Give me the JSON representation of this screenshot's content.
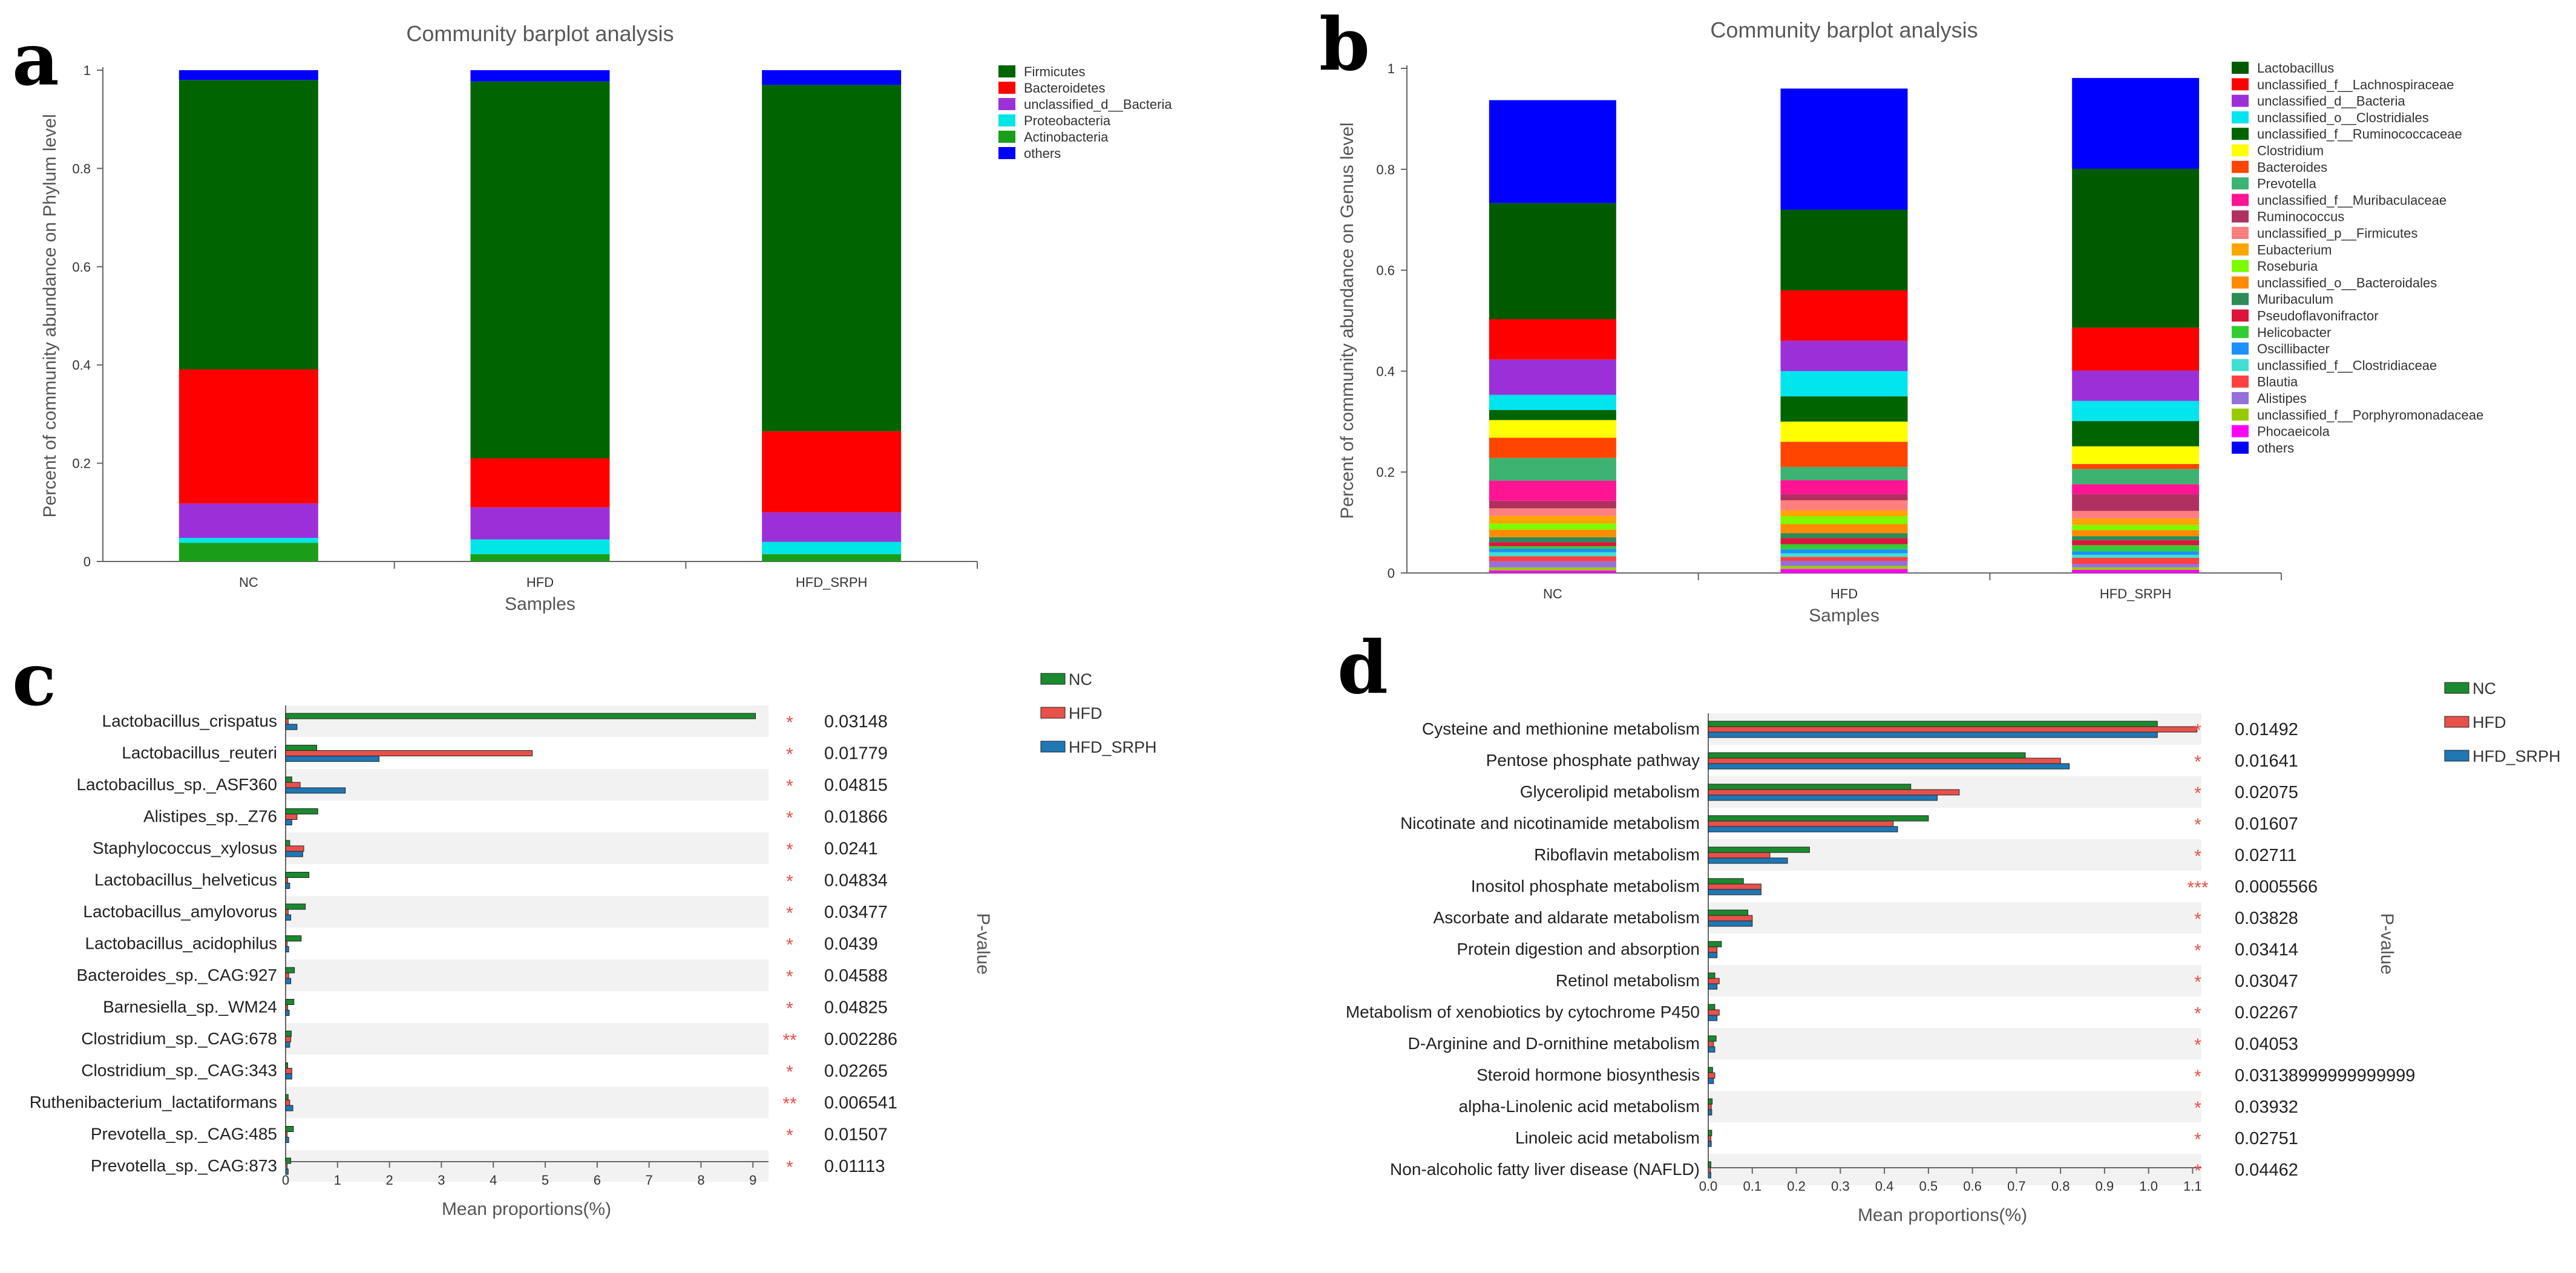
{
  "figure": {
    "panels": [
      "a",
      "b",
      "c",
      "d"
    ]
  },
  "chart_data": [
    {
      "panel": "a",
      "type": "bar",
      "stacked": true,
      "title": "Community barplot analysis",
      "xlabel": "Samples",
      "ylabel": "Percent of community abundance on Phylum level",
      "ylim": [
        0,
        1
      ],
      "yticks": [
        "0",
        "0.2",
        "0.4",
        "0.6",
        "0.8",
        "1"
      ],
      "categories": [
        "NC",
        "HFD",
        "HFD_SRPH"
      ],
      "series": [
        {
          "name": "Actinobacteria",
          "color": "#1a9e1a",
          "values": [
            0.038,
            0.015,
            0.015
          ]
        },
        {
          "name": "Proteobacteria",
          "color": "#00e5e5",
          "values": [
            0.01,
            0.03,
            0.025
          ]
        },
        {
          "name": "unclassified_d__Bacteria",
          "color": "#9b30d9",
          "values": [
            0.07,
            0.065,
            0.06
          ]
        },
        {
          "name": "Bacteroidetes",
          "color": "#ff0000",
          "values": [
            0.273,
            0.1,
            0.165
          ]
        },
        {
          "name": "Firmicutes",
          "color": "#006400",
          "values": [
            0.589,
            0.767,
            0.705
          ]
        },
        {
          "name": "others",
          "color": "#0000ff",
          "values": [
            0.02,
            0.023,
            0.03
          ]
        }
      ],
      "legend_order": [
        "Firmicutes",
        "Bacteroidetes",
        "unclassified_d__Bacteria",
        "Proteobacteria",
        "Actinobacteria",
        "others"
      ],
      "legend_position": "right"
    },
    {
      "panel": "b",
      "type": "bar",
      "stacked": true,
      "title": "Community barplot analysis",
      "xlabel": "Samples",
      "ylabel": "Percent of community abundance on Genus level",
      "ylim": [
        0,
        1
      ],
      "yticks": [
        "0",
        "0.2",
        "0.4",
        "0.6",
        "0.8",
        "1"
      ],
      "categories": [
        "NC",
        "HFD",
        "HFD_SRPH"
      ],
      "series": [
        {
          "name": "Phocaeicola",
          "color": "#ff00ff",
          "values": [
            0.005,
            0.008,
            0.006
          ]
        },
        {
          "name": "unclassified_f__Porphyromonadaceae",
          "color": "#99cc00",
          "values": [
            0.006,
            0.006,
            0.005
          ]
        },
        {
          "name": "Alistipes",
          "color": "#9370db",
          "values": [
            0.012,
            0.01,
            0.007
          ]
        },
        {
          "name": "Blautia",
          "color": "#ff4040",
          "values": [
            0.01,
            0.008,
            0.012
          ]
        },
        {
          "name": "unclassified_f__Clostridiaceae",
          "color": "#40e0d0",
          "values": [
            0.008,
            0.007,
            0.006
          ]
        },
        {
          "name": "Oscillibacter",
          "color": "#1e90ff",
          "values": [
            0.007,
            0.008,
            0.007
          ]
        },
        {
          "name": "Helicobacter",
          "color": "#32cd32",
          "values": [
            0.005,
            0.01,
            0.012
          ]
        },
        {
          "name": "Pseudoflavonifractor",
          "color": "#dc143c",
          "values": [
            0.008,
            0.012,
            0.01
          ]
        },
        {
          "name": "Muribaculum",
          "color": "#2e8b57",
          "values": [
            0.01,
            0.01,
            0.008
          ]
        },
        {
          "name": "unclassified_o__Bacteroidales",
          "color": "#ff8c00",
          "values": [
            0.015,
            0.018,
            0.012
          ]
        },
        {
          "name": "Roseburia",
          "color": "#7cfc00",
          "values": [
            0.012,
            0.015,
            0.01
          ]
        },
        {
          "name": "Eubacterium",
          "color": "#ffa500",
          "values": [
            0.015,
            0.012,
            0.013
          ]
        },
        {
          "name": "unclassified_p__Firmicutes",
          "color": "#ff7f7f",
          "values": [
            0.015,
            0.02,
            0.015
          ]
        },
        {
          "name": "Ruminococcus",
          "color": "#b03060",
          "values": [
            0.015,
            0.012,
            0.033
          ]
        },
        {
          "name": "unclassified_f__Muribaculaceae",
          "color": "#ff1493",
          "values": [
            0.04,
            0.028,
            0.02
          ]
        },
        {
          "name": "Prevotella",
          "color": "#3cb371",
          "values": [
            0.045,
            0.026,
            0.03
          ]
        },
        {
          "name": "Bacteroides",
          "color": "#ff4500",
          "values": [
            0.04,
            0.05,
            0.01
          ]
        },
        {
          "name": "Clostridium",
          "color": "#ffff00",
          "values": [
            0.035,
            0.04,
            0.035
          ]
        },
        {
          "name": "unclassified_f__Ruminococcaceae",
          "color": "#006400",
          "values": [
            0.02,
            0.05,
            0.05
          ]
        },
        {
          "name": "unclassified_o__Clostridiales",
          "color": "#00e5ee",
          "values": [
            0.03,
            0.05,
            0.04
          ]
        },
        {
          "name": "unclassified_d__Bacteria",
          "color": "#9b30d9",
          "values": [
            0.07,
            0.06,
            0.06
          ]
        },
        {
          "name": "unclassified_f__Lachnospiraceae",
          "color": "#ff0000",
          "values": [
            0.08,
            0.1,
            0.085
          ]
        },
        {
          "name": "Lactobacillus",
          "color": "#005a00",
          "values": [
            0.23,
            0.16,
            0.315
          ]
        },
        {
          "name": "others",
          "color": "#0000ff",
          "values": [
            0.204,
            0.24,
            0.18
          ]
        }
      ],
      "legend_order": [
        "Lactobacillus",
        "unclassified_f__Lachnospiraceae",
        "unclassified_d__Bacteria",
        "unclassified_o__Clostridiales",
        "unclassified_f__Ruminococcaceae",
        "Clostridium",
        "Bacteroides",
        "Prevotella",
        "unclassified_f__Muribaculaceae",
        "Ruminococcus",
        "unclassified_p__Firmicutes",
        "Eubacterium",
        "Roseburia",
        "unclassified_o__Bacteroidales",
        "Muribaculum",
        "Pseudoflavonifractor",
        "Helicobacter",
        "Oscillibacter",
        "unclassified_f__Clostridiaceae",
        "Blautia",
        "Alistipes",
        "unclassified_f__Porphyromonadaceae",
        "Phocaeicola",
        "others"
      ],
      "legend_position": "right"
    },
    {
      "panel": "c",
      "type": "bar",
      "orientation": "horizontal",
      "xlabel": "Mean proportions(%)",
      "p_label": "P-value",
      "xlim": [
        0,
        9.3
      ],
      "xticks": [
        "0",
        "1",
        "2",
        "3",
        "4",
        "5",
        "6",
        "7",
        "8",
        "9"
      ],
      "group_names": [
        "NC",
        "HFD",
        "HFD_SRPH"
      ],
      "group_colors": [
        "#1a8a2e",
        "#e8504a",
        "#1f77b4"
      ],
      "rows": [
        {
          "label": "Lactobacillus_crispatus",
          "values": [
            9.05,
            0.05,
            0.22
          ],
          "star": "*",
          "p": "0.03148"
        },
        {
          "label": "Lactobacillus_reuteri",
          "values": [
            0.6,
            4.75,
            1.8
          ],
          "star": "*",
          "p": "0.01779"
        },
        {
          "label": "Lactobacillus_sp._ASF360",
          "values": [
            0.12,
            0.28,
            1.15
          ],
          "star": "*",
          "p": "0.04815"
        },
        {
          "label": "Alistipes_sp._Z76",
          "values": [
            0.62,
            0.22,
            0.12
          ],
          "star": "*",
          "p": "0.01866"
        },
        {
          "label": "Staphylococcus_xylosus",
          "values": [
            0.08,
            0.35,
            0.33
          ],
          "star": "*",
          "p": "0.0241"
        },
        {
          "label": "Lactobacillus_helveticus",
          "values": [
            0.45,
            0.04,
            0.08
          ],
          "star": "*",
          "p": "0.04834"
        },
        {
          "label": "Lactobacillus_amylovorus",
          "values": [
            0.38,
            0.05,
            0.1
          ],
          "star": "*",
          "p": "0.03477"
        },
        {
          "label": "Lactobacillus_acidophilus",
          "values": [
            0.3,
            0.03,
            0.06
          ],
          "star": "*",
          "p": "0.0439"
        },
        {
          "label": "Bacteroides_sp._CAG:927",
          "values": [
            0.17,
            0.06,
            0.1
          ],
          "star": "*",
          "p": "0.04588"
        },
        {
          "label": "Barnesiella_sp._WM24",
          "values": [
            0.16,
            0.04,
            0.07
          ],
          "star": "*",
          "p": "0.04825"
        },
        {
          "label": "Clostridium_sp._CAG:678",
          "values": [
            0.11,
            0.1,
            0.08
          ],
          "star": "**",
          "p": "0.002286"
        },
        {
          "label": "Clostridium_sp._CAG:343",
          "values": [
            0.04,
            0.12,
            0.12
          ],
          "star": "*",
          "p": "0.02265"
        },
        {
          "label": "Ruthenibacterium_lactatiformans",
          "values": [
            0.05,
            0.08,
            0.14
          ],
          "star": "**",
          "p": "0.006541"
        },
        {
          "label": "Prevotella_sp._CAG:485",
          "values": [
            0.15,
            0.03,
            0.06
          ],
          "star": "*",
          "p": "0.01507"
        },
        {
          "label": "Prevotella_sp._CAG:873",
          "values": [
            0.1,
            0.03,
            0.05
          ],
          "star": "*",
          "p": "0.01113"
        }
      ]
    },
    {
      "panel": "d",
      "type": "bar",
      "orientation": "horizontal",
      "xlabel": "Mean proportions(%)",
      "p_label": "P-value",
      "xlim": [
        0,
        1.12
      ],
      "xticks": [
        "0.0",
        "0.1",
        "0.2",
        "0.3",
        "0.4",
        "0.5",
        "0.6",
        "0.7",
        "0.8",
        "0.9",
        "1.0",
        "1.1"
      ],
      "group_names": [
        "NC",
        "HFD",
        "HFD_SRPH"
      ],
      "group_colors": [
        "#1a8a2e",
        "#e8504a",
        "#1f77b4"
      ],
      "rows": [
        {
          "label": "Cysteine and methionine metabolism",
          "values": [
            1.02,
            1.11,
            1.02
          ],
          "star": "*",
          "p": "0.01492"
        },
        {
          "label": "Pentose phosphate pathway",
          "values": [
            0.72,
            0.8,
            0.82
          ],
          "star": "*",
          "p": "0.01641"
        },
        {
          "label": "Glycerolipid metabolism",
          "values": [
            0.46,
            0.57,
            0.52
          ],
          "star": "*",
          "p": "0.02075"
        },
        {
          "label": "Nicotinate and nicotinamide metabolism",
          "values": [
            0.5,
            0.42,
            0.43
          ],
          "star": "*",
          "p": "0.01607"
        },
        {
          "label": "Riboflavin metabolism",
          "values": [
            0.23,
            0.14,
            0.18
          ],
          "star": "*",
          "p": "0.02711"
        },
        {
          "label": "Inositol phosphate metabolism",
          "values": [
            0.08,
            0.12,
            0.12
          ],
          "star": "***",
          "p": "0.0005566"
        },
        {
          "label": "Ascorbate and aldarate metabolism",
          "values": [
            0.09,
            0.1,
            0.1
          ],
          "star": "*",
          "p": "0.03828"
        },
        {
          "label": "Protein digestion and absorption",
          "values": [
            0.03,
            0.02,
            0.02
          ],
          "star": "*",
          "p": "0.03414"
        },
        {
          "label": "Retinol metabolism",
          "values": [
            0.015,
            0.025,
            0.02
          ],
          "star": "*",
          "p": "0.03047"
        },
        {
          "label": "Metabolism of xenobiotics by cytochrome P450",
          "values": [
            0.015,
            0.025,
            0.02
          ],
          "star": "*",
          "p": "0.02267"
        },
        {
          "label": "D-Arginine and D-ornithine metabolism",
          "values": [
            0.018,
            0.012,
            0.015
          ],
          "star": "*",
          "p": "0.04053"
        },
        {
          "label": "Steroid hormone biosynthesis",
          "values": [
            0.01,
            0.015,
            0.012
          ],
          "star": "*",
          "p": "0.03138999999999999"
        },
        {
          "label": "alpha-Linolenic acid metabolism",
          "values": [
            0.009,
            0.007,
            0.008
          ],
          "star": "*",
          "p": "0.03932"
        },
        {
          "label": "Linoleic acid metabolism",
          "values": [
            0.008,
            0.006,
            0.007
          ],
          "star": "*",
          "p": "0.02751"
        },
        {
          "label": "Non-alcoholic fatty liver disease (NAFLD)",
          "values": [
            0.006,
            0.005,
            0.006
          ],
          "star": "*",
          "p": "0.04462"
        }
      ]
    }
  ]
}
